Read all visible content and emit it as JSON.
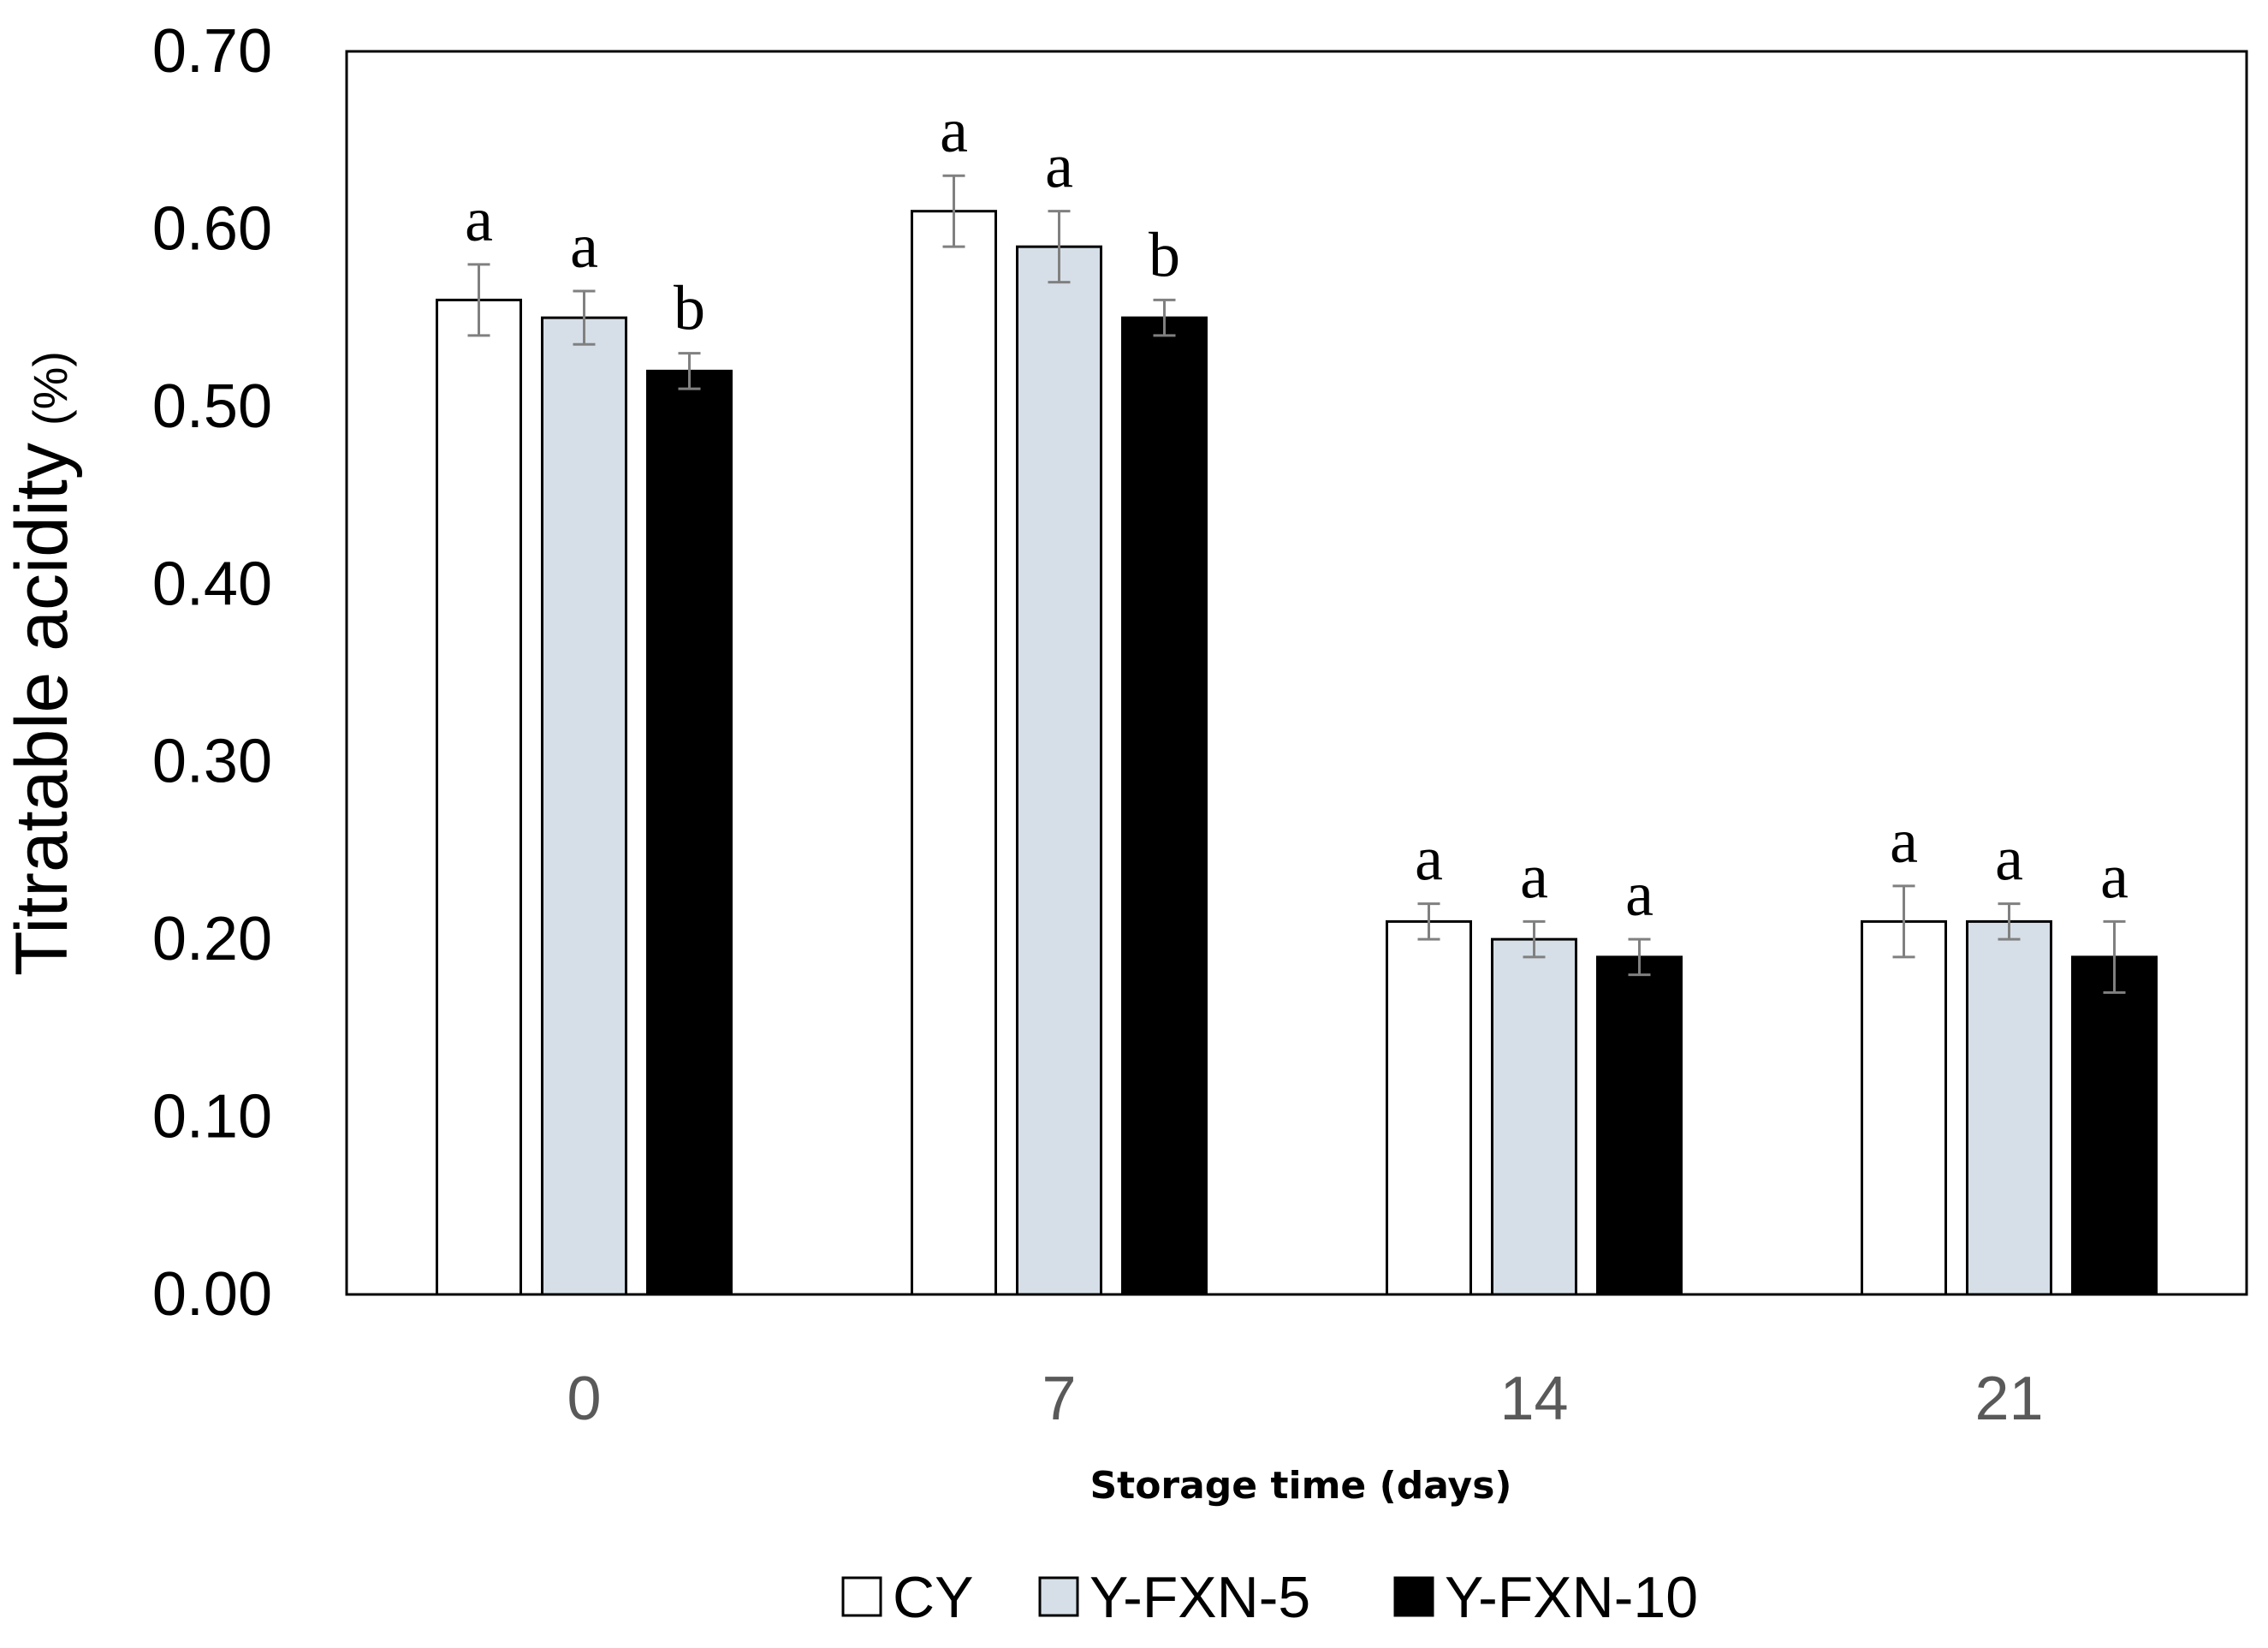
{
  "chart_data": {
    "type": "bar",
    "categories": [
      "0",
      "7",
      "14",
      "21"
    ],
    "series": [
      {
        "name": "CY",
        "color": "#ffffff",
        "values": [
          0.56,
          0.61,
          0.21,
          0.21
        ],
        "errors": [
          0.02,
          0.02,
          0.01,
          0.02
        ],
        "letters": [
          "a",
          "a",
          "a",
          "a"
        ]
      },
      {
        "name": "Y-FXN-5",
        "color": "#d6dfe8",
        "values": [
          0.55,
          0.59,
          0.2,
          0.21
        ],
        "errors": [
          0.015,
          0.02,
          0.01,
          0.01
        ],
        "letters": [
          "a",
          "a",
          "a",
          "a"
        ]
      },
      {
        "name": "Y-FXN-10",
        "color": "#000000",
        "values": [
          0.52,
          0.55,
          0.19,
          0.19
        ],
        "errors": [
          0.01,
          0.01,
          0.01,
          0.02
        ],
        "letters": [
          "b",
          "b",
          "a",
          "a"
        ]
      }
    ],
    "xlabel": "Storage time (days)",
    "ylabel": "Titratable acidity",
    "ylabel_unit": "(%)",
    "ylim": [
      0,
      0.7
    ],
    "yticks": [
      "0.00",
      "0.10",
      "0.20",
      "0.30",
      "0.40",
      "0.50",
      "0.60",
      "0.70"
    ],
    "grid": false,
    "legend_position": "bottom"
  }
}
